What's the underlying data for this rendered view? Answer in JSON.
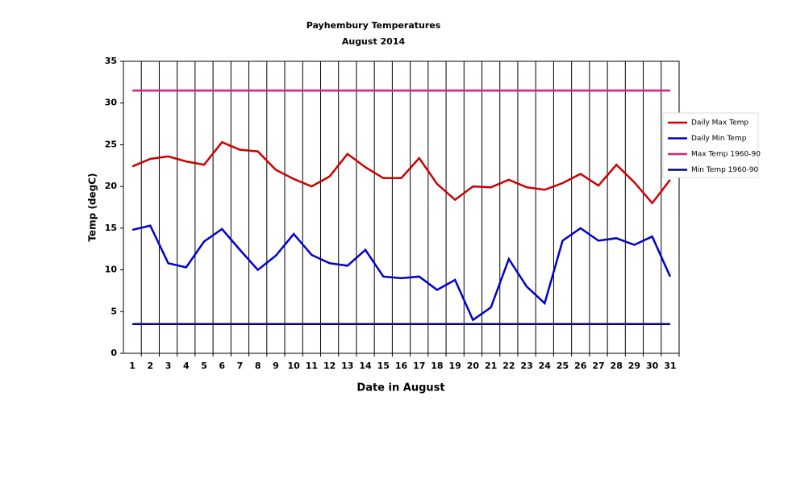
{
  "chart_data": {
    "type": "line",
    "title": "Payhembury Temperatures",
    "subtitle": "August 2014",
    "x_label": "Date in August",
    "y_label": "Temp (degC)",
    "categories": [
      "1",
      "2",
      "3",
      "4",
      "5",
      "6",
      "7",
      "8",
      "9",
      "10",
      "11",
      "12",
      "13",
      "14",
      "15",
      "16",
      "17",
      "18",
      "19",
      "20",
      "21",
      "22",
      "23",
      "24",
      "25",
      "26",
      "27",
      "28",
      "29",
      "30",
      "31"
    ],
    "series": [
      {
        "name": "Daily Max Temp",
        "color": "#cc0000",
        "values": [
          22.4,
          23.3,
          23.6,
          23.0,
          22.6,
          25.3,
          24.4,
          24.2,
          22.0,
          20.9,
          20.0,
          21.2,
          23.9,
          22.3,
          21.0,
          21.0,
          23.4,
          20.3,
          18.4,
          20.0,
          19.9,
          20.8,
          19.9,
          19.6,
          20.4,
          21.5,
          20.1,
          22.6,
          20.5,
          18.0,
          20.8
        ]
      },
      {
        "name": "Daily Min Temp",
        "color": "#0000cc",
        "values": [
          14.8,
          15.3,
          10.8,
          10.3,
          13.4,
          14.9,
          12.4,
          10.0,
          11.7,
          14.3,
          11.8,
          10.8,
          10.5,
          12.4,
          9.2,
          9.0,
          9.2,
          7.6,
          8.8,
          4.0,
          5.5,
          11.3,
          8.0,
          6.0,
          13.5,
          15.0,
          13.5,
          13.8,
          13.0,
          14.0,
          9.2
        ]
      },
      {
        "name": "Max Temp 1960-90",
        "color": "#e0207a",
        "values": [
          31.5,
          31.5,
          31.5,
          31.5,
          31.5,
          31.5,
          31.5,
          31.5,
          31.5,
          31.5,
          31.5,
          31.5,
          31.5,
          31.5,
          31.5,
          31.5,
          31.5,
          31.5,
          31.5,
          31.5,
          31.5,
          31.5,
          31.5,
          31.5,
          31.5,
          31.5,
          31.5,
          31.5,
          31.5,
          31.5,
          31.5
        ]
      },
      {
        "name": "Min Temp 1960-90",
        "color": "#000080",
        "values": [
          3.5,
          3.5,
          3.5,
          3.5,
          3.5,
          3.5,
          3.5,
          3.5,
          3.5,
          3.5,
          3.5,
          3.5,
          3.5,
          3.5,
          3.5,
          3.5,
          3.5,
          3.5,
          3.5,
          3.5,
          3.5,
          3.5,
          3.5,
          3.5,
          3.5,
          3.5,
          3.5,
          3.5,
          3.5,
          3.5,
          3.5
        ]
      }
    ],
    "ylim": [
      0,
      35
    ],
    "yticks": [
      0,
      5,
      10,
      15,
      20,
      25,
      30,
      35
    ],
    "xgrid": true,
    "legend": "right"
  }
}
